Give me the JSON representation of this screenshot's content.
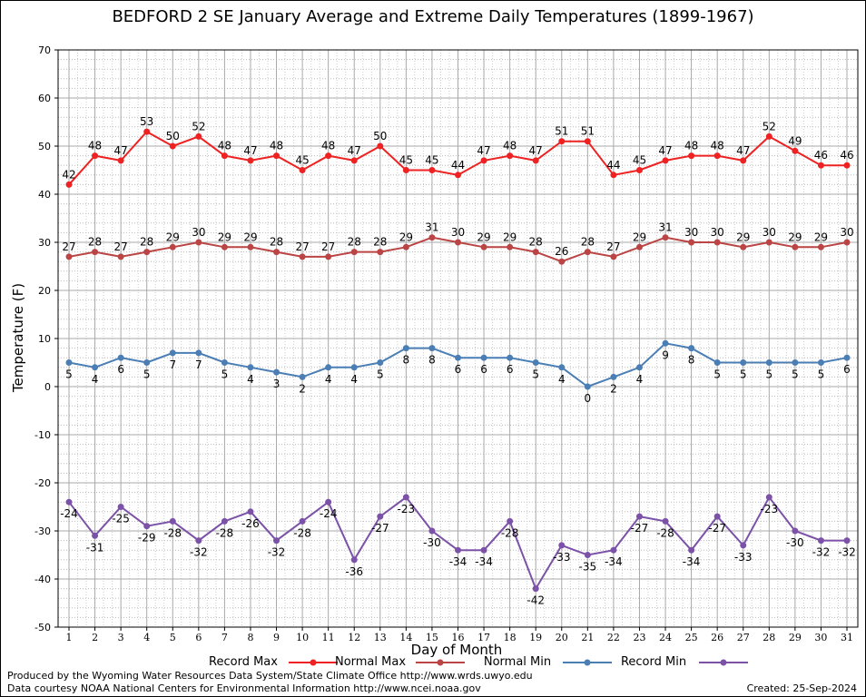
{
  "chart_data": {
    "type": "line",
    "title": "BEDFORD 2 SE January Average and Extreme Daily Temperatures (1899-1967)",
    "xlabel": "Day of Month",
    "ylabel": "Temperature (F)",
    "ylim": [
      -50,
      70
    ],
    "yticks": [
      70,
      60,
      50,
      40,
      30,
      20,
      10,
      0,
      -10,
      -20,
      -30,
      -40,
      -50
    ],
    "x": [
      1,
      2,
      3,
      4,
      5,
      6,
      7,
      8,
      9,
      10,
      11,
      12,
      13,
      14,
      15,
      16,
      17,
      18,
      19,
      20,
      21,
      22,
      23,
      24,
      25,
      26,
      27,
      28,
      29,
      30,
      31
    ],
    "grid": true,
    "legend_position": "bottom",
    "series": [
      {
        "name": "Record Max",
        "color": "#ee2222",
        "label_side": "above",
        "values": [
          42,
          48,
          47,
          53,
          50,
          52,
          48,
          47,
          48,
          45,
          48,
          47,
          50,
          45,
          45,
          44,
          47,
          48,
          47,
          51,
          51,
          44,
          45,
          47,
          48,
          48,
          47,
          52,
          49,
          46,
          46
        ]
      },
      {
        "name": "Normal Max",
        "color": "#bb4444",
        "label_side": "above",
        "values": [
          27,
          28,
          27,
          28,
          29,
          30,
          29,
          29,
          28,
          27,
          27,
          28,
          28,
          29,
          31,
          30,
          29,
          29,
          28,
          26,
          28,
          27,
          29,
          31,
          30,
          30,
          29,
          30,
          29,
          29,
          30
        ]
      },
      {
        "name": "Normal Min",
        "color": "#4a7eb5",
        "label_side": "below",
        "values": [
          5,
          4,
          6,
          5,
          7,
          7,
          5,
          4,
          3,
          2,
          4,
          4,
          5,
          8,
          8,
          6,
          6,
          6,
          5,
          4,
          0,
          2,
          4,
          9,
          8,
          5,
          5,
          5,
          5,
          5,
          6
        ]
      },
      {
        "name": "Record Min",
        "color": "#7b52a8",
        "label_side": "below",
        "values": [
          -24,
          -31,
          -25,
          -29,
          -28,
          -32,
          -28,
          -26,
          -32,
          -28,
          -24,
          -36,
          -27,
          -23,
          -30,
          -34,
          -34,
          -28,
          -42,
          -33,
          -35,
          -34,
          -27,
          -28,
          -34,
          -27,
          -33,
          -23,
          -30,
          -32,
          -32
        ]
      }
    ]
  },
  "footer": {
    "produced_by": "Produced by the Wyoming Water Resources Data System/State Climate Office http://www.wrds.uwyo.edu",
    "courtesy": "Data courtesy NOAA National Centers for Environmental Information http://www.ncei.noaa.gov",
    "created": "Created:  25-Sep-2024"
  }
}
